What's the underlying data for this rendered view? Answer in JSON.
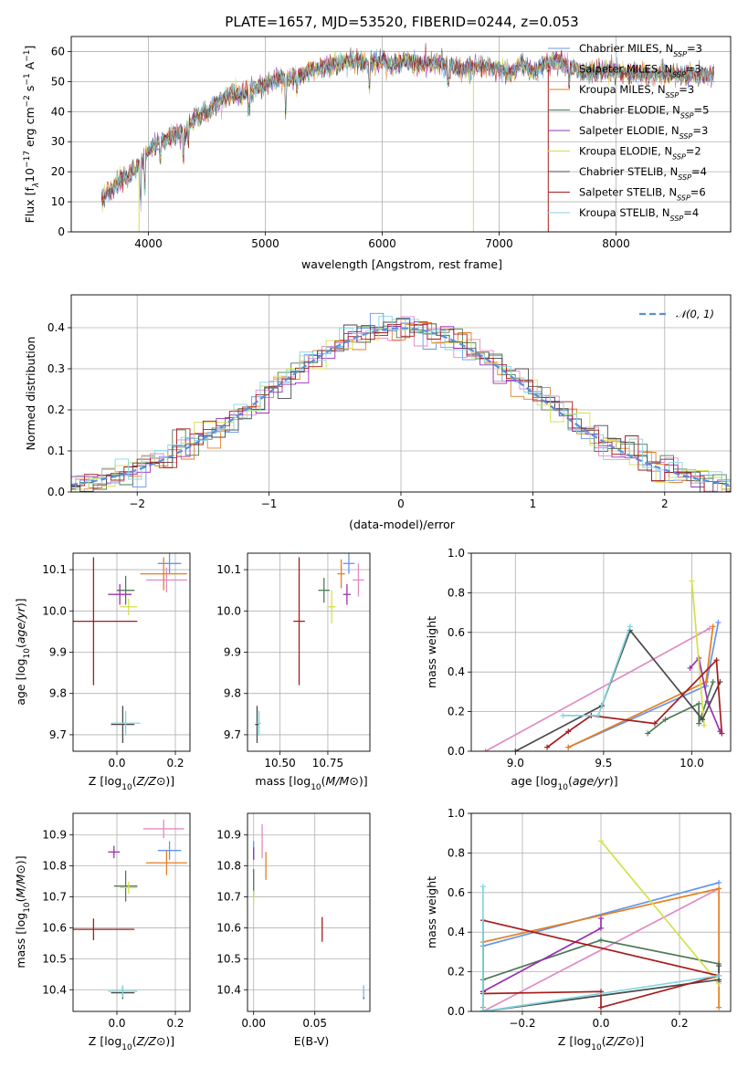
{
  "title": "PLATE=1657, MJD=53520, FIBERID=0244, z=0.053",
  "models": [
    {
      "name": "Chabrier MILES",
      "nssp": 3,
      "color": "#6495ed"
    },
    {
      "name": "Salpeter MILES",
      "nssp": 3,
      "color": "#e18ac4"
    },
    {
      "name": "Kroupa MILES",
      "nssp": 3,
      "color": "#e67e22"
    },
    {
      "name": "Chabrier ELODIE",
      "nssp": 5,
      "color": "#4f7a56"
    },
    {
      "name": "Salpeter ELODIE",
      "nssp": 3,
      "color": "#9b30b3"
    },
    {
      "name": "Kroupa ELODIE",
      "nssp": 2,
      "color": "#d4e04a"
    },
    {
      "name": "Chabrier STELIB",
      "nssp": 4,
      "color": "#4a4a4a"
    },
    {
      "name": "Salpeter STELIB",
      "nssp": 6,
      "color": "#a61c1c"
    },
    {
      "name": "Kroupa STELIB",
      "nssp": 4,
      "color": "#7fd6e0"
    }
  ],
  "legend_suffix": "N",
  "legend_sub": "SSP",
  "chart_data": [
    {
      "id": "spectrum",
      "type": "line",
      "xlabel": "wavelength [Angstrom, rest frame]",
      "ylabel_parts": [
        "Flux [f",
        "λ",
        "10",
        "−17",
        " erg cm",
        "−2",
        " s",
        "−1",
        " A",
        "−1",
        "]"
      ],
      "xlim": [
        3340,
        8980
      ],
      "ylim": [
        0,
        65
      ],
      "xticks": [
        4000,
        5000,
        6000,
        7000,
        8000
      ],
      "yticks": [
        0,
        10,
        20,
        30,
        40,
        50,
        60
      ],
      "continuum": [
        [
          3600,
          11
        ],
        [
          3700,
          15
        ],
        [
          3800,
          18
        ],
        [
          3900,
          21
        ],
        [
          4000,
          27
        ],
        [
          4100,
          30
        ],
        [
          4200,
          32
        ],
        [
          4300,
          33
        ],
        [
          4400,
          38
        ],
        [
          4500,
          40
        ],
        [
          4600,
          43
        ],
        [
          4700,
          46
        ],
        [
          4800,
          45
        ],
        [
          4900,
          48
        ],
        [
          5000,
          49
        ],
        [
          5100,
          51
        ],
        [
          5200,
          51
        ],
        [
          5300,
          52
        ],
        [
          5400,
          54
        ],
        [
          5500,
          55
        ],
        [
          5600,
          56
        ],
        [
          5700,
          57
        ],
        [
          5800,
          57
        ],
        [
          5900,
          56
        ],
        [
          6000,
          57
        ],
        [
          6100,
          55
        ],
        [
          6200,
          57
        ],
        [
          6300,
          56
        ],
        [
          6400,
          56
        ],
        [
          6500,
          56
        ],
        [
          6600,
          55
        ],
        [
          6700,
          54
        ],
        [
          6800,
          55
        ],
        [
          6900,
          55
        ],
        [
          7000,
          54
        ],
        [
          7100,
          53
        ],
        [
          7200,
          56
        ],
        [
          7300,
          53
        ],
        [
          7400,
          56
        ],
        [
          7500,
          57
        ],
        [
          7600,
          55
        ],
        [
          7700,
          53
        ],
        [
          7800,
          53
        ],
        [
          7900,
          54
        ],
        [
          8000,
          53
        ],
        [
          8100,
          53
        ],
        [
          8200,
          53
        ],
        [
          8300,
          52
        ],
        [
          8400,
          53
        ],
        [
          8500,
          52
        ],
        [
          8600,
          52
        ],
        [
          8700,
          52
        ],
        [
          8800,
          52
        ]
      ],
      "drops": [
        {
          "model": 5,
          "x": 3920
        },
        {
          "model": 5,
          "x": 6780
        },
        {
          "model": 7,
          "x": 7420
        }
      ]
    },
    {
      "id": "residuals",
      "type": "histogram",
      "xlabel": "(data-model)/error",
      "ylabel": "Normed distribution",
      "xlim": [
        -2.5,
        2.5
      ],
      "ylim": [
        0,
        0.48
      ],
      "xticks": [
        -2,
        -1,
        0,
        1,
        2
      ],
      "yticks": [
        0,
        0.1,
        0.2,
        0.3,
        0.4
      ],
      "legend": "𝒩(0, 1)"
    },
    {
      "id": "age_vs_Z",
      "type": "scatter",
      "xlabel": "Z [log10(Z/Z⊙)]",
      "ylabel": "age [log10(age/yr)]",
      "xlim": [
        -0.15,
        0.25
      ],
      "ylim": [
        9.66,
        10.14
      ],
      "xticks": [
        0.0,
        0.2
      ],
      "yticks": [
        9.7,
        9.8,
        9.9,
        10.0,
        10.1
      ],
      "points": [
        {
          "m": 0,
          "x": 0.18,
          "y": 10.115,
          "xe": 0.04,
          "ye": 0.025
        },
        {
          "m": 1,
          "x": 0.17,
          "y": 10.075,
          "xe": 0.07,
          "ye": 0.03
        },
        {
          "m": 2,
          "x": 0.16,
          "y": 10.09,
          "xe": 0.08,
          "ye": 0.04
        },
        {
          "m": 3,
          "x": 0.03,
          "y": 10.05,
          "xe": 0.03,
          "ye": 0.035
        },
        {
          "m": 4,
          "x": 0.01,
          "y": 10.04,
          "xe": 0.04,
          "ye": 0.025
        },
        {
          "m": 5,
          "x": 0.04,
          "y": 10.01,
          "xe": 0.03,
          "ye": 0.02
        },
        {
          "m": 6,
          "x": 0.02,
          "y": 9.725,
          "xe": 0.04,
          "ye": 0.045
        },
        {
          "m": 7,
          "x": -0.08,
          "y": 9.975,
          "xe": 0.15,
          "ye": 0.155
        },
        {
          "m": 8,
          "x": 0.03,
          "y": 9.728,
          "xe": 0.05,
          "ye": 0.03
        }
      ]
    },
    {
      "id": "age_vs_mass",
      "type": "scatter",
      "xlabel": "mass [log10(M/M⊙)]",
      "ylabel": "",
      "xlim": [
        10.33,
        10.97
      ],
      "ylim": [
        9.66,
        10.14
      ],
      "xticks": [
        10.5,
        10.75
      ],
      "yticks": [
        9.7,
        9.8,
        9.9,
        10.0,
        10.1
      ],
      "points": [
        {
          "m": 0,
          "x": 10.86,
          "y": 10.115,
          "xe": 0.03,
          "ye": 0.025
        },
        {
          "m": 1,
          "x": 10.91,
          "y": 10.075,
          "xe": 0.03,
          "ye": 0.04
        },
        {
          "m": 2,
          "x": 10.82,
          "y": 10.09,
          "xe": 0.02,
          "ye": 0.035
        },
        {
          "m": 3,
          "x": 10.73,
          "y": 10.05,
          "xe": 0.03,
          "ye": 0.03
        },
        {
          "m": 4,
          "x": 10.85,
          "y": 10.04,
          "xe": 0.02,
          "ye": 0.025
        },
        {
          "m": 5,
          "x": 10.77,
          "y": 10.01,
          "xe": 0.02,
          "ye": 0.04
        },
        {
          "m": 6,
          "x": 10.38,
          "y": 9.725,
          "xe": 0.01,
          "ye": 0.045
        },
        {
          "m": 7,
          "x": 10.6,
          "y": 9.975,
          "xe": 0.03,
          "ye": 0.155
        },
        {
          "m": 8,
          "x": 10.39,
          "y": 9.728,
          "xe": 0.01,
          "ye": 0.03
        }
      ]
    },
    {
      "id": "weight_vs_age",
      "type": "line",
      "xlabel": "age [log10(age/yr)]",
      "ylabel": "mass weight",
      "xlim": [
        8.75,
        10.22
      ],
      "ylim": [
        0,
        1
      ],
      "xticks": [
        9.0,
        9.5,
        10.0
      ],
      "yticks": [
        0,
        0.2,
        0.4,
        0.6,
        0.8,
        1.0
      ],
      "series": [
        {
          "m": 0,
          "pts": [
            [
              9.3,
              0.02
            ],
            [
              10.08,
              0.33
            ],
            [
              10.15,
              0.65
            ]
          ]
        },
        {
          "m": 1,
          "pts": [
            [
              8.83,
              0.0
            ],
            [
              10.1,
              0.62
            ]
          ]
        },
        {
          "m": 2,
          "pts": [
            [
              9.3,
              0.02
            ],
            [
              10.08,
              0.35
            ],
            [
              10.12,
              0.63
            ]
          ]
        },
        {
          "m": 3,
          "pts": [
            [
              9.75,
              0.09
            ],
            [
              9.85,
              0.16
            ],
            [
              10.04,
              0.24
            ],
            [
              10.04,
              0.14
            ],
            [
              10.12,
              0.35
            ]
          ]
        },
        {
          "m": 4,
          "pts": [
            [
              9.99,
              0.42
            ],
            [
              10.04,
              0.47
            ],
            [
              10.09,
              0.25
            ],
            [
              10.16,
              0.1
            ]
          ]
        },
        {
          "m": 5,
          "pts": [
            [
              10.0,
              0.86
            ],
            [
              10.07,
              0.13
            ]
          ]
        },
        {
          "m": 6,
          "pts": [
            [
              9.0,
              0.0
            ],
            [
              9.49,
              0.23
            ],
            [
              9.65,
              0.61
            ],
            [
              10.06,
              0.16
            ],
            [
              10.16,
              0.35
            ]
          ]
        },
        {
          "m": 7,
          "pts": [
            [
              9.18,
              0.02
            ],
            [
              9.3,
              0.1
            ],
            [
              9.43,
              0.18
            ],
            [
              9.79,
              0.14
            ],
            [
              10.14,
              0.46
            ],
            [
              10.17,
              0.09
            ]
          ]
        },
        {
          "m": 8,
          "pts": [
            [
              9.27,
              0.18
            ],
            [
              9.47,
              0.18
            ],
            [
              9.65,
              0.63
            ]
          ]
        }
      ]
    },
    {
      "id": "mass_vs_Z",
      "type": "scatter",
      "xlabel": "Z [log10(Z/Z⊙)]",
      "ylabel": "mass [log10(M/M⊙)]",
      "xlim": [
        -0.15,
        0.25
      ],
      "ylim": [
        10.33,
        10.97
      ],
      "xticks": [
        0.0,
        0.2
      ],
      "yticks": [
        10.4,
        10.5,
        10.6,
        10.7,
        10.8,
        10.9
      ],
      "points": [
        {
          "m": 0,
          "x": 0.18,
          "y": 10.85,
          "xe": 0.04,
          "ye": 0.03
        },
        {
          "m": 1,
          "x": 0.16,
          "y": 10.92,
          "xe": 0.07,
          "ye": 0.03
        },
        {
          "m": 2,
          "x": 0.17,
          "y": 10.81,
          "xe": 0.07,
          "ye": 0.04
        },
        {
          "m": 3,
          "x": 0.03,
          "y": 10.735,
          "xe": 0.04,
          "ye": 0.05
        },
        {
          "m": 4,
          "x": -0.01,
          "y": 10.845,
          "xe": 0.02,
          "ye": 0.02
        },
        {
          "m": 5,
          "x": 0.04,
          "y": 10.73,
          "xe": 0.03,
          "ye": 0.02
        },
        {
          "m": 6,
          "x": 0.02,
          "y": 10.39,
          "xe": 0.04,
          "ye": 0.02
        },
        {
          "m": 7,
          "x": -0.08,
          "y": 10.595,
          "xe": 0.14,
          "ye": 0.035
        },
        {
          "m": 8,
          "x": 0.02,
          "y": 10.395,
          "xe": 0.05,
          "ye": 0.02
        }
      ]
    },
    {
      "id": "mass_vs_EBV",
      "type": "scatter",
      "xlabel": "E(B-V)",
      "ylabel": "",
      "xlim": [
        -0.005,
        0.095
      ],
      "ylim": [
        10.33,
        10.97
      ],
      "xticks": [
        0.0,
        0.05
      ],
      "yticks": [
        10.4,
        10.5,
        10.6,
        10.7,
        10.8,
        10.9
      ],
      "points": [
        {
          "m": 0,
          "x": 0.0,
          "y": 10.85,
          "xe": 0,
          "ye": 0.03
        },
        {
          "m": 1,
          "x": 0.007,
          "y": 10.88,
          "xe": 0,
          "ye": 0.055
        },
        {
          "m": 2,
          "x": 0.01,
          "y": 10.8,
          "xe": 0,
          "ye": 0.045
        },
        {
          "m": 3,
          "x": 0.0,
          "y": 10.745,
          "xe": 0,
          "ye": 0.045
        },
        {
          "m": 4,
          "x": 0.0,
          "y": 10.84,
          "xe": 0,
          "ye": 0.02
        },
        {
          "m": 5,
          "x": 0.0,
          "y": 10.7,
          "xe": 0,
          "ye": 0.02
        },
        {
          "m": 6,
          "x": 0.09,
          "y": 10.39,
          "xe": 0,
          "ye": 0.02
        },
        {
          "m": 7,
          "x": 0.056,
          "y": 10.595,
          "xe": 0,
          "ye": 0.04
        },
        {
          "m": 8,
          "x": 0.09,
          "y": 10.395,
          "xe": 0,
          "ye": 0.02
        }
      ]
    },
    {
      "id": "weight_vs_Z",
      "type": "line",
      "xlabel": "Z [log10(Z/Z⊙)]",
      "ylabel": "mass weight",
      "xlim": [
        -0.33,
        0.33
      ],
      "ylim": [
        0,
        1
      ],
      "xticks": [
        -0.2,
        0.0,
        0.2
      ],
      "yticks": [
        0,
        0.2,
        0.4,
        0.6,
        0.8,
        1.0
      ],
      "series": [
        {
          "m": 0,
          "pts": [
            [
              -0.3,
              0.0
            ],
            [
              -0.3,
              0.33
            ],
            [
              0.3,
              0.65
            ]
          ]
        },
        {
          "m": 1,
          "pts": [
            [
              -0.3,
              0.0
            ],
            [
              0.3,
              0.62
            ]
          ]
        },
        {
          "m": 2,
          "pts": [
            [
              -0.3,
              0.02
            ],
            [
              -0.3,
              0.35
            ],
            [
              0.3,
              0.62
            ],
            [
              0.3,
              0.02
            ]
          ]
        },
        {
          "m": 3,
          "pts": [
            [
              -0.3,
              0.16
            ],
            [
              0.0,
              0.36
            ],
            [
              0.3,
              0.24
            ],
            [
              0.3,
              0.15
            ]
          ]
        },
        {
          "m": 4,
          "pts": [
            [
              -0.3,
              0.1
            ],
            [
              0.0,
              0.42
            ],
            [
              0.0,
              0.47
            ]
          ]
        },
        {
          "m": 5,
          "pts": [
            [
              0.0,
              0.86
            ],
            [
              0.3,
              0.14
            ]
          ]
        },
        {
          "m": 6,
          "pts": [
            [
              -0.3,
              0.0
            ],
            [
              0.3,
              0.16
            ],
            [
              0.3,
              0.23
            ]
          ]
        },
        {
          "m": 7,
          "pts": [
            [
              -0.3,
              0.09
            ],
            [
              0.0,
              0.1
            ],
            [
              0.0,
              0.02
            ],
            [
              0.3,
              0.18
            ],
            [
              -0.3,
              0.46
            ],
            [
              -0.3,
              0.1
            ]
          ]
        },
        {
          "m": 8,
          "pts": [
            [
              -0.3,
              0.63
            ],
            [
              -0.3,
              0.0
            ],
            [
              0.3,
              0.18
            ]
          ]
        }
      ]
    }
  ]
}
